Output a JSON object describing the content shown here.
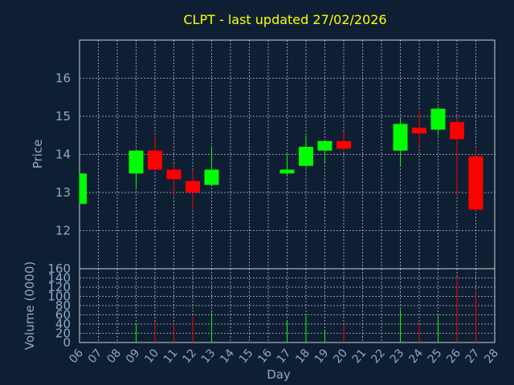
{
  "colors": {
    "background": "#0f1f33",
    "title": "#ffff00",
    "axis_text": "#8fa9c9",
    "grid": "#c9d3de",
    "up": "#00ff00",
    "down": "#ff0000"
  },
  "chart_data": [
    {
      "type": "candlestick",
      "title": "CLPT - last updated 27/02/2026",
      "ylabel": "Price",
      "ylim": [
        11,
        17
      ],
      "yticks": [
        12,
        13,
        14,
        15,
        16
      ],
      "grid": true,
      "x_days": [
        "06",
        "07",
        "08",
        "09",
        "10",
        "11",
        "12",
        "13",
        "14",
        "15",
        "16",
        "17",
        "18",
        "19",
        "20",
        "21",
        "22",
        "23",
        "24",
        "25",
        "26",
        "27",
        "28"
      ],
      "candles": [
        {
          "day": "06",
          "open": 12.7,
          "high": 13.5,
          "low": 12.7,
          "close": 13.5
        },
        {
          "day": "09",
          "open": 13.5,
          "high": 14.1,
          "low": 13.1,
          "close": 14.1
        },
        {
          "day": "10",
          "open": 14.1,
          "high": 14.5,
          "low": 13.6,
          "close": 13.6
        },
        {
          "day": "11",
          "open": 13.6,
          "high": 13.75,
          "low": 12.9,
          "close": 13.35
        },
        {
          "day": "12",
          "open": 13.3,
          "high": 13.6,
          "low": 12.55,
          "close": 13.0
        },
        {
          "day": "13",
          "open": 13.2,
          "high": 14.2,
          "low": 13.2,
          "close": 13.6
        },
        {
          "day": "17",
          "open": 13.5,
          "high": 14.0,
          "low": 13.45,
          "close": 13.6
        },
        {
          "day": "18",
          "open": 13.7,
          "high": 14.5,
          "low": 13.65,
          "close": 14.2
        },
        {
          "day": "19",
          "open": 14.1,
          "high": 14.35,
          "low": 13.8,
          "close": 14.35
        },
        {
          "day": "20",
          "open": 14.35,
          "high": 14.6,
          "low": 14.1,
          "close": 14.15
        },
        {
          "day": "23",
          "open": 14.1,
          "high": 14.95,
          "low": 13.7,
          "close": 14.8
        },
        {
          "day": "24",
          "open": 14.7,
          "high": 15.15,
          "low": 14.2,
          "close": 14.55
        },
        {
          "day": "25",
          "open": 14.65,
          "high": 15.25,
          "low": 14.5,
          "close": 15.2
        },
        {
          "day": "26",
          "open": 14.85,
          "high": 14.95,
          "low": 12.9,
          "close": 14.4
        },
        {
          "day": "27",
          "open": 13.95,
          "high": 14.15,
          "low": 12.5,
          "close": 12.55
        }
      ]
    },
    {
      "type": "bar",
      "ylabel": "Volume (0000)",
      "xlabel": "Day",
      "ylim": [
        0,
        160
      ],
      "yticks": [
        0,
        20,
        40,
        60,
        80,
        100,
        120,
        140,
        160
      ],
      "grid": true,
      "volumes": [
        {
          "day": "09",
          "value": 42,
          "direction": "up"
        },
        {
          "day": "10",
          "value": 45,
          "direction": "down"
        },
        {
          "day": "11",
          "value": 40,
          "direction": "down"
        },
        {
          "day": "12",
          "value": 58,
          "direction": "down"
        },
        {
          "day": "13",
          "value": 65,
          "direction": "up"
        },
        {
          "day": "17",
          "value": 45,
          "direction": "up"
        },
        {
          "day": "18",
          "value": 58,
          "direction": "up"
        },
        {
          "day": "19",
          "value": 28,
          "direction": "up"
        },
        {
          "day": "20",
          "value": 38,
          "direction": "down"
        },
        {
          "day": "23",
          "value": 72,
          "direction": "up"
        },
        {
          "day": "24",
          "value": 40,
          "direction": "down"
        },
        {
          "day": "25",
          "value": 58,
          "direction": "up"
        },
        {
          "day": "26",
          "value": 142,
          "direction": "down"
        },
        {
          "day": "27",
          "value": 112,
          "direction": "down"
        }
      ]
    }
  ]
}
